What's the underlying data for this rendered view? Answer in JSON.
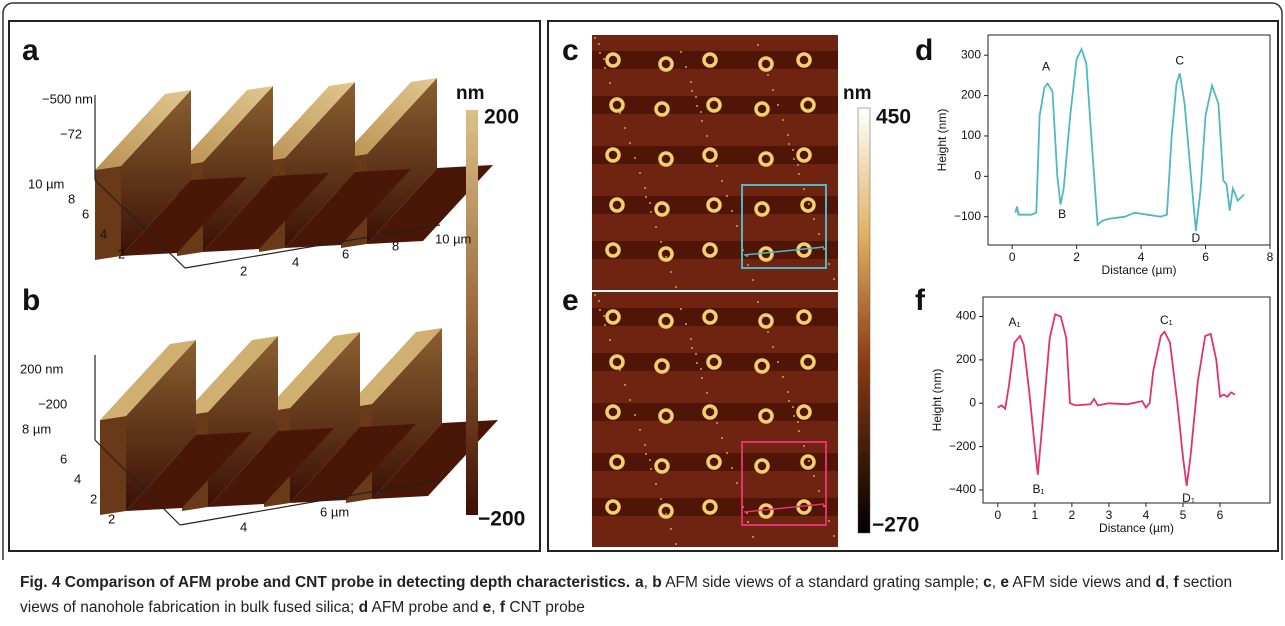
{
  "panel_labels": [
    "a",
    "b",
    "c",
    "d",
    "e",
    "f"
  ],
  "figure": {
    "a": {
      "axis_labels": [
        "−500 nm",
        "−72",
        "10 µm",
        "8",
        "6",
        "4",
        "2",
        "2",
        "4",
        "6",
        "8",
        "10 µm"
      ],
      "colorbar": {
        "unit": "nm",
        "max": "200",
        "min": "−200"
      }
    },
    "b": {
      "axis_labels": [
        "200 nm",
        "−200",
        "8 µm",
        "6",
        "4",
        "2",
        "2",
        "4",
        "6 µm"
      ]
    },
    "c": {
      "colorbar": {
        "unit": "nm",
        "max": "450",
        "min": "−270"
      }
    }
  },
  "chart_data": [
    {
      "type": "line",
      "color": "#4fb8c4",
      "x_label": "Distance (µm)",
      "y_label": "Height (nm)",
      "x": [
        0.1,
        0.15,
        0.2,
        0.6,
        0.75,
        0.85,
        1.0,
        1.1,
        1.25,
        1.4,
        1.5,
        1.6,
        1.8,
        2.0,
        2.15,
        2.3,
        2.5,
        2.65,
        2.8,
        3.0,
        3.5,
        3.8,
        4.2,
        4.6,
        4.8,
        4.95,
        5.1,
        5.2,
        5.35,
        5.55,
        5.7,
        5.85,
        6.0,
        6.2,
        6.4,
        6.55,
        6.65,
        6.75,
        6.85,
        7.0,
        7.2
      ],
      "values": [
        -90,
        -75,
        -95,
        -95,
        -90,
        150,
        220,
        230,
        210,
        0,
        -70,
        -30,
        150,
        290,
        315,
        280,
        50,
        -120,
        -110,
        -105,
        -100,
        -90,
        -95,
        -100,
        -95,
        100,
        230,
        255,
        180,
        0,
        -135,
        -30,
        150,
        225,
        180,
        -10,
        -20,
        -85,
        -30,
        -60,
        -45
      ],
      "xlim": [
        -0.75,
        8
      ],
      "xticks": [
        0,
        2,
        4,
        6,
        8
      ],
      "ylim": [
        -170,
        350
      ],
      "yticks": [
        {
          "value": -100,
          "label": "−100"
        },
        0,
        100,
        200,
        300
      ],
      "annotations": [
        {
          "text": "A",
          "x": 1.05,
          "y": 270
        },
        {
          "text": "B",
          "x": 1.55,
          "y": -95
        },
        {
          "text": "C",
          "x": 5.2,
          "y": 285
        },
        {
          "text": "D",
          "x": 5.7,
          "y": -155
        }
      ]
    },
    {
      "type": "line",
      "color": "#e0336b",
      "x_label": "Distance (µm)",
      "y_label": "Height (nm)",
      "x": [
        0,
        0.1,
        0.2,
        0.3,
        0.45,
        0.6,
        0.7,
        0.85,
        1.0,
        1.08,
        1.2,
        1.4,
        1.55,
        1.7,
        1.85,
        1.95,
        2.1,
        2.5,
        2.6,
        2.7,
        3.0,
        3.5,
        3.9,
        4.0,
        4.1,
        4.2,
        4.4,
        4.5,
        4.65,
        4.85,
        5.0,
        5.1,
        5.2,
        5.4,
        5.6,
        5.75,
        5.9,
        6.0,
        6.1,
        6.2,
        6.3,
        6.4
      ],
      "values": [
        -20,
        -10,
        -25,
        80,
        280,
        310,
        270,
        50,
        -200,
        -330,
        -100,
        300,
        410,
        400,
        300,
        0,
        -10,
        -5,
        20,
        -10,
        0,
        -5,
        10,
        -20,
        0,
        150,
        310,
        330,
        280,
        0,
        -250,
        -380,
        -250,
        100,
        310,
        320,
        200,
        30,
        40,
        30,
        50,
        40
      ],
      "xlim": [
        -0.4,
        7.35
      ],
      "xticks": [
        0,
        1,
        2,
        3,
        4,
        5,
        6
      ],
      "ylim": [
        -460,
        490
      ],
      "yticks": [
        {
          "value": -400,
          "label": "−400"
        },
        {
          "value": -200,
          "label": "−200"
        },
        0,
        200,
        400
      ],
      "annotations": [
        {
          "text": "A₁",
          "x": 0.45,
          "y": 370
        },
        {
          "text": "B₁",
          "x": 1.1,
          "y": -400
        },
        {
          "text": "C₁",
          "x": 4.55,
          "y": 380
        },
        {
          "text": "D₁",
          "x": 5.15,
          "y": -440
        }
      ]
    }
  ],
  "caption": [
    {
      "text": "Fig. 4 Comparison of AFM probe and CNT probe in detecting depth characteristics.",
      "bold": true
    },
    {
      "text": "a",
      "bold": true
    },
    {
      "text": ", ",
      "bold": false
    },
    {
      "text": "b",
      "bold": true
    },
    {
      "text": " AFM side views of a standard grating sample; ",
      "bold": false
    },
    {
      "text": "c",
      "bold": true
    },
    {
      "text": ", ",
      "bold": false
    },
    {
      "text": "e",
      "bold": true
    },
    {
      "text": " AFM side views and ",
      "bold": false
    },
    {
      "text": "d",
      "bold": true
    },
    {
      "text": ", ",
      "bold": false
    },
    {
      "text": "f",
      "bold": true
    },
    {
      "text": " section views of nanohole fabrication in bulk fused silica; ",
      "bold": false
    },
    {
      "text": "d",
      "bold": true
    },
    {
      "text": " AFM probe and ",
      "bold": false
    },
    {
      "text": "e",
      "bold": true
    },
    {
      "text": ", ",
      "bold": false
    },
    {
      "text": "f",
      "bold": true
    },
    {
      "text": " CNT probe",
      "bold": false
    }
  ]
}
